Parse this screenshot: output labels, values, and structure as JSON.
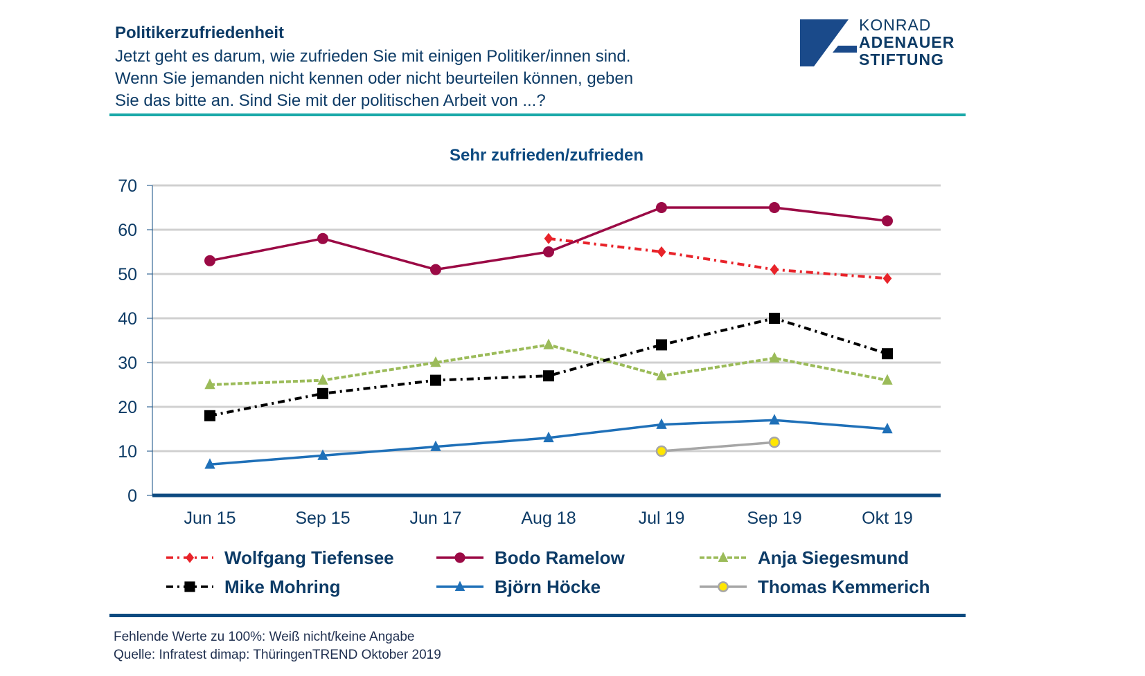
{
  "header": {
    "title": "Politikerzufriedenheit",
    "question_lines": [
      "Jetzt geht es darum, wie zufrieden Sie mit einigen Politiker/innen sind.",
      "Wenn Sie jemanden nicht kennen oder nicht beurteilen können, geben",
      "Sie das bitte an. Sind Sie mit der politischen Arbeit von ...?"
    ]
  },
  "logo": {
    "line1": "KONRAD",
    "line2": "ADENAUER",
    "line3": "STIFTUNG",
    "color": "#1a4a8a"
  },
  "chart_data": {
    "type": "line",
    "title": "Sehr zufrieden/zufrieden",
    "xlabel": "",
    "ylabel": "",
    "categories": [
      "Jun 15",
      "Sep 15",
      "Jun 17",
      "Aug 18",
      "Jul 19",
      "Sep 19",
      "Okt 19"
    ],
    "yticks": [
      0,
      10,
      20,
      30,
      40,
      50,
      60,
      70
    ],
    "ylim": [
      0,
      70
    ],
    "grid": true,
    "legend_position": "bottom",
    "series": [
      {
        "name": "Wolfgang Tiefensee",
        "color": "#e8232a",
        "marker": "diamond",
        "dash": "dashdot",
        "values": [
          null,
          null,
          null,
          58,
          55,
          51,
          49
        ]
      },
      {
        "name": "Bodo Ramelow",
        "color": "#9b0a45",
        "marker": "circle",
        "dash": "solid",
        "values": [
          53,
          58,
          51,
          55,
          65,
          65,
          62
        ]
      },
      {
        "name": "Anja Siegesmund",
        "color": "#9bbb59",
        "marker": "triangle",
        "dash": "dashed",
        "values": [
          25,
          26,
          30,
          34,
          27,
          31,
          26
        ]
      },
      {
        "name": "Mike Mohring",
        "color": "#000000",
        "marker": "square",
        "dash": "dashdot",
        "values": [
          18,
          23,
          26,
          27,
          34,
          40,
          32
        ]
      },
      {
        "name": "Björn Höcke",
        "color": "#1f70b8",
        "marker": "triangle",
        "dash": "solid",
        "values": [
          7,
          9,
          11,
          13,
          16,
          17,
          15
        ]
      },
      {
        "name": "Thomas Kemmerich",
        "color": "#a6a6a6",
        "marker": "circle-yellow",
        "dash": "solid",
        "values": [
          null,
          null,
          null,
          null,
          10,
          12,
          null
        ]
      }
    ]
  },
  "footer": {
    "line1": "Fehlende Werte zu 100%: Weiß nicht/keine Angabe",
    "line2": "Quelle: Infratest dimap: ThüringenTREND Oktober 2019"
  }
}
